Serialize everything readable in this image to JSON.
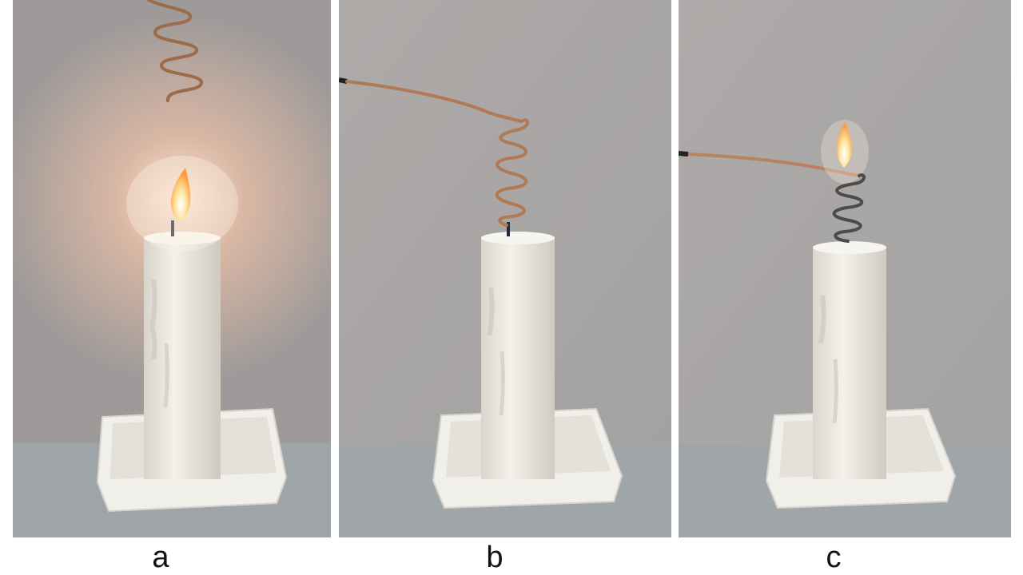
{
  "panels": [
    {
      "label": "a"
    },
    {
      "label": "b"
    },
    {
      "label": "c"
    }
  ],
  "colors": {
    "wall": "#a9a5a4",
    "table": "#9ea3a8",
    "wax": "#ece9e0",
    "copper": "#b07a55",
    "flame": "#ffd27a"
  }
}
